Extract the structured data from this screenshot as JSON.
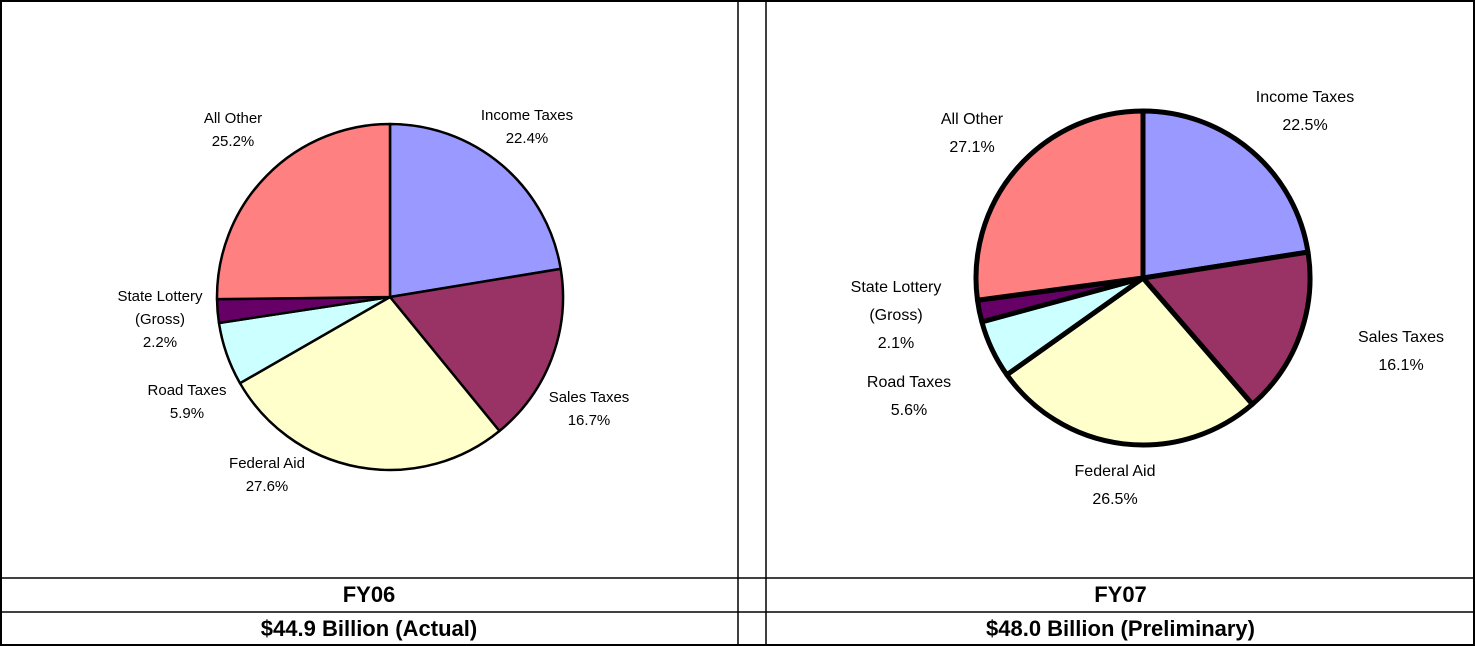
{
  "chart_data": [
    {
      "type": "pie",
      "title": "FY06",
      "subtitle": "$44.9 Billion (Actual)",
      "categories": [
        "Income Taxes",
        "Sales Taxes",
        "Federal Aid",
        "Road Taxes",
        "State Lottery (Gross)",
        "All Other"
      ],
      "values": [
        22.4,
        16.7,
        27.6,
        5.9,
        2.2,
        25.2
      ],
      "value_labels": [
        "22.4%",
        "16.7%",
        "27.6%",
        "5.9%",
        "2.2%",
        "25.2%"
      ],
      "colors": [
        "#9999ff",
        "#993366",
        "#ffffcc",
        "#ccffff",
        "#660066",
        "#ff8080"
      ]
    },
    {
      "type": "pie",
      "title": "FY07",
      "subtitle": "$48.0 Billion (Preliminary)",
      "categories": [
        "Income Taxes",
        "Sales Taxes",
        "Federal Aid",
        "Road Taxes",
        "State Lottery (Gross)",
        "All Other"
      ],
      "values": [
        22.5,
        16.1,
        26.5,
        5.6,
        2.1,
        27.1
      ],
      "value_labels": [
        "22.5%",
        "16.1%",
        "26.5%",
        "5.6%",
        "2.1%",
        "27.1%"
      ],
      "colors": [
        "#9999ff",
        "#993366",
        "#ffffcc",
        "#ccffff",
        "#660066",
        "#ff8080"
      ]
    }
  ]
}
